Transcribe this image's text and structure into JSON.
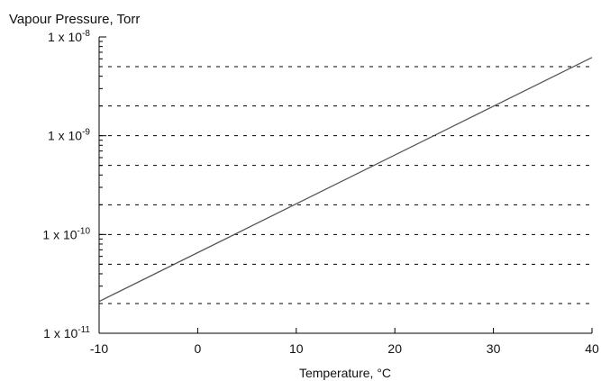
{
  "chart_data": {
    "type": "line",
    "title": "",
    "ylabel": "Vapour Pressure, Torr",
    "xlabel": "Temperature, °C",
    "x_ticks": [
      -10,
      0,
      10,
      20,
      30,
      40
    ],
    "y_scale": "log",
    "y_ticks": [
      {
        "value": 1e-08,
        "base": "1 x 10",
        "exp": "-8"
      },
      {
        "value": 1e-09,
        "base": "1 x 10",
        "exp": "-9"
      },
      {
        "value": 1e-10,
        "base": "1 x 10",
        "exp": "-10"
      },
      {
        "value": 1e-11,
        "base": "1 x 10",
        "exp": "-11"
      }
    ],
    "y_minor_gridlines": [
      2e-09,
      5e-09,
      2e-10,
      5e-10,
      2e-11,
      5e-11
    ],
    "xlim": [
      -10,
      40
    ],
    "ylim": [
      1e-11,
      1e-08
    ],
    "grid": "horizontal dashed",
    "series": [
      {
        "x": [
          -10,
          40
        ],
        "y": [
          2.1e-11,
          6.2e-09
        ]
      }
    ],
    "colors": {
      "line": "#555555",
      "axis": "#000000",
      "grid": "#000000"
    }
  }
}
